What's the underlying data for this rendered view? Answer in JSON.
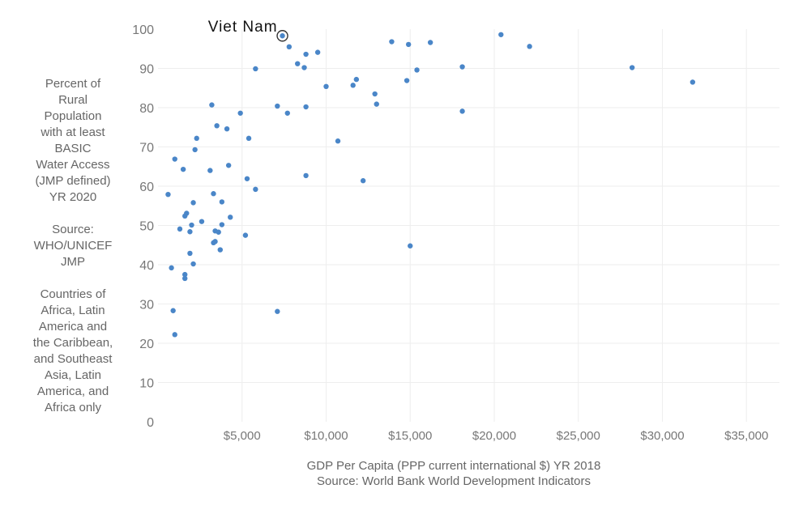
{
  "chart_data": {
    "type": "scatter",
    "title": "",
    "xlabel": "GDP Per Capita (PPP current international $)  YR 2018",
    "xlabel_source": "Source: World Bank World Development Indicators",
    "ylabel_lines": [
      "Percent of\nRural\nPopulation\nwith at least\nBASIC\nWater Access\n(JMP defined)\nYR 2020",
      "Source:\nWHO/UNICEF\nJMP",
      "Countries of\nAfrica, Latin\nAmerica and\nthe Caribbean,\nand Southeast\nAsia, Latin\nAmerica, and\nAfrica only"
    ],
    "xlim": [
      0,
      37000
    ],
    "ylim": [
      0,
      100
    ],
    "x_ticks": [
      5000,
      10000,
      15000,
      20000,
      25000,
      30000,
      35000
    ],
    "x_tick_labels": [
      "$5,000",
      "$10,000",
      "$15,000",
      "$20,000",
      "$25,000",
      "$30,000",
      "$35,000"
    ],
    "y_ticks": [
      0,
      10,
      20,
      30,
      40,
      50,
      60,
      70,
      80,
      90,
      100
    ],
    "y_tick_labels": [
      "0",
      "10",
      "20",
      "30",
      "40",
      "50",
      "60",
      "70",
      "80",
      "90",
      "100"
    ],
    "grid": true,
    "point_color": "#4a86c8",
    "highlight": {
      "label": "Viet Nam",
      "x": 7400,
      "y": 98.3
    },
    "points": [
      {
        "x": 7400,
        "y": 98.3
      },
      {
        "x": 7800,
        "y": 95.5
      },
      {
        "x": 8300,
        "y": 91.2
      },
      {
        "x": 8700,
        "y": 90.2
      },
      {
        "x": 8800,
        "y": 93.6
      },
      {
        "x": 9500,
        "y": 94.1
      },
      {
        "x": 5800,
        "y": 89.9
      },
      {
        "x": 13900,
        "y": 96.8
      },
      {
        "x": 14900,
        "y": 96.1
      },
      {
        "x": 16200,
        "y": 96.6
      },
      {
        "x": 20400,
        "y": 98.6
      },
      {
        "x": 22100,
        "y": 95.6
      },
      {
        "x": 15400,
        "y": 89.6
      },
      {
        "x": 18100,
        "y": 90.4
      },
      {
        "x": 28200,
        "y": 90.2
      },
      {
        "x": 31800,
        "y": 86.5
      },
      {
        "x": 10000,
        "y": 85.4
      },
      {
        "x": 11600,
        "y": 85.7
      },
      {
        "x": 11800,
        "y": 87.2
      },
      {
        "x": 14800,
        "y": 86.9
      },
      {
        "x": 12900,
        "y": 83.5
      },
      {
        "x": 13000,
        "y": 80.9
      },
      {
        "x": 18100,
        "y": 79.1
      },
      {
        "x": 3200,
        "y": 80.7
      },
      {
        "x": 7100,
        "y": 80.4
      },
      {
        "x": 7700,
        "y": 78.6
      },
      {
        "x": 8800,
        "y": 80.2
      },
      {
        "x": 4900,
        "y": 78.6
      },
      {
        "x": 3500,
        "y": 75.4
      },
      {
        "x": 4100,
        "y": 74.6
      },
      {
        "x": 5400,
        "y": 72.2
      },
      {
        "x": 2300,
        "y": 72.2
      },
      {
        "x": 2200,
        "y": 69.3
      },
      {
        "x": 10700,
        "y": 71.5
      },
      {
        "x": 1000,
        "y": 66.9
      },
      {
        "x": 1500,
        "y": 64.3
      },
      {
        "x": 3100,
        "y": 64.0
      },
      {
        "x": 4200,
        "y": 65.3
      },
      {
        "x": 5300,
        "y": 61.9
      },
      {
        "x": 8800,
        "y": 62.7
      },
      {
        "x": 12200,
        "y": 61.4
      },
      {
        "x": 5800,
        "y": 59.2
      },
      {
        "x": 600,
        "y": 57.9
      },
      {
        "x": 3300,
        "y": 58.1
      },
      {
        "x": 2100,
        "y": 55.8
      },
      {
        "x": 3800,
        "y": 56.0
      },
      {
        "x": 1700,
        "y": 53.1
      },
      {
        "x": 1600,
        "y": 52.4
      },
      {
        "x": 4300,
        "y": 52.1
      },
      {
        "x": 2600,
        "y": 51.0
      },
      {
        "x": 2000,
        "y": 50.1
      },
      {
        "x": 3800,
        "y": 50.2
      },
      {
        "x": 1300,
        "y": 49.1
      },
      {
        "x": 1900,
        "y": 48.4
      },
      {
        "x": 3400,
        "y": 48.6
      },
      {
        "x": 3600,
        "y": 48.3
      },
      {
        "x": 5200,
        "y": 47.5
      },
      {
        "x": 3300,
        "y": 45.6
      },
      {
        "x": 3400,
        "y": 45.9
      },
      {
        "x": 3700,
        "y": 43.8
      },
      {
        "x": 1900,
        "y": 42.9
      },
      {
        "x": 15000,
        "y": 44.8
      },
      {
        "x": 800,
        "y": 39.2
      },
      {
        "x": 2100,
        "y": 40.2
      },
      {
        "x": 1600,
        "y": 37.5
      },
      {
        "x": 1600,
        "y": 36.5
      },
      {
        "x": 900,
        "y": 28.3
      },
      {
        "x": 7100,
        "y": 28.1
      },
      {
        "x": 1000,
        "y": 22.2
      }
    ]
  }
}
